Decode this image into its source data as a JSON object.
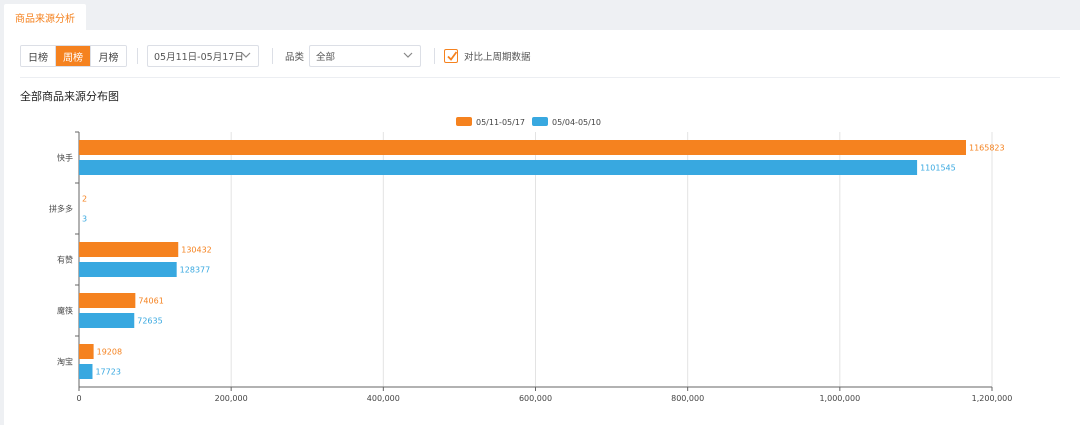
{
  "tabs": [
    {
      "label": "商品来源分析",
      "active": true
    }
  ],
  "filters": {
    "period_buttons": [
      {
        "label": "日榜",
        "active": false
      },
      {
        "label": "周榜",
        "active": true
      },
      {
        "label": "月榜",
        "active": false
      }
    ],
    "date_range": "05月11日-05月17日",
    "category_label": "品类",
    "category_value": "全部",
    "compare_checked": true,
    "compare_label": "对比上周期数据"
  },
  "section_title": "全部商品来源分布图",
  "colors": {
    "accent": "#f5821f",
    "series1": "#f5821f",
    "series2": "#38a8e0"
  },
  "chart_data": {
    "type": "bar",
    "orientation": "horizontal",
    "categories": [
      "快手",
      "拼多多",
      "有赞",
      "魔筷",
      "淘宝"
    ],
    "series": [
      {
        "name": "05/11-05/17",
        "values": [
          1165823,
          2,
          130432,
          74061,
          19208
        ]
      },
      {
        "name": "05/04-05/10",
        "values": [
          1101545,
          3,
          128377,
          72635,
          17723
        ]
      }
    ],
    "x_ticks": [
      "0",
      "200,000",
      "400,000",
      "600,000",
      "800,000",
      "1,000,000",
      "1,200,000"
    ],
    "xlim": [
      0,
      1200000
    ],
    "legend_position": "top-center",
    "grid": true
  }
}
